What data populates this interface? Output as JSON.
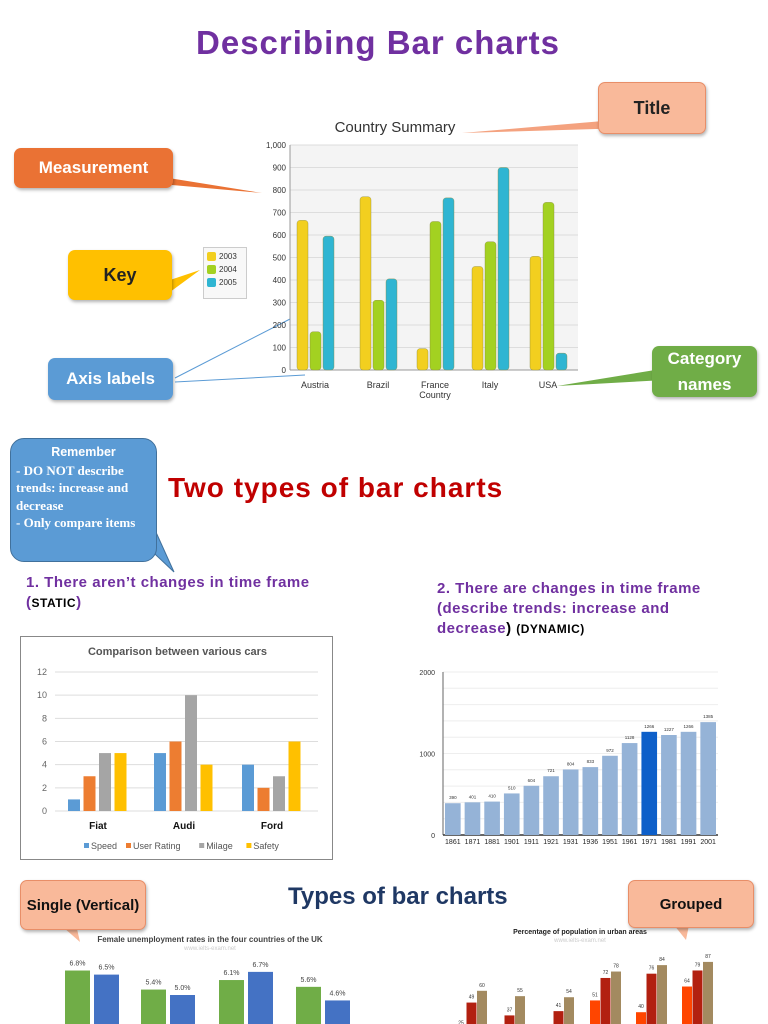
{
  "page": {
    "title": "Describing Bar charts",
    "subtitle": "Two types of bar charts",
    "types_heading": "Types of bar charts",
    "callouts": {
      "title": "Title",
      "measurement": "Measurement",
      "key": "Key",
      "axis_labels": "Axis labels",
      "category_names": "Category names",
      "single": "Single (Vertical)",
      "grouped": "Grouped"
    },
    "remember": {
      "heading": "Remember",
      "lines": [
        "- DO NOT describe trends: increase and decrease",
        "- Only compare items"
      ]
    },
    "type1": {
      "text": "1. There aren’t changes in time frame (",
      "tag": "STATIC",
      "close": ")"
    },
    "type2": {
      "text": "2. There are changes in time frame (describe trends: increase and decrease",
      "close": ")",
      "tag": "(DYNAMIC)"
    },
    "colors": {
      "title": "#7030a0",
      "subtitle": "#c00000",
      "types_heading": "#1f3864"
    }
  },
  "chart_data": [
    {
      "type": "bar",
      "title": "Country Summary",
      "xlabel": "Country",
      "ylabel": "",
      "ylim": [
        0,
        1000
      ],
      "yticks": [
        "0",
        "100",
        "200",
        "300",
        "400",
        "500",
        "600",
        "700",
        "800",
        "900",
        "1,000"
      ],
      "categories": [
        "Austria",
        "Brazil",
        "France",
        "Italy",
        "USA"
      ],
      "series": [
        {
          "name": "2003",
          "color": "#f2cf1f",
          "values": [
            665,
            770,
            95,
            460,
            505
          ]
        },
        {
          "name": "2004",
          "color": "#a3d121",
          "values": [
            170,
            310,
            660,
            570,
            745
          ]
        },
        {
          "name": "2005",
          "color": "#2fb5d2",
          "values": [
            595,
            405,
            765,
            900,
            75
          ]
        }
      ],
      "legend": "left",
      "grid": true
    },
    {
      "type": "bar",
      "title": "Comparison between various cars",
      "ylim": [
        0,
        12
      ],
      "yticks": [
        "0",
        "2",
        "4",
        "6",
        "8",
        "10",
        "12"
      ],
      "categories": [
        "Fiat",
        "Audi",
        "Ford"
      ],
      "series": [
        {
          "name": "Speed",
          "color": "#5b9bd5",
          "values": [
            1,
            5,
            4
          ]
        },
        {
          "name": "User Rating",
          "color": "#ed7d31",
          "values": [
            3,
            6,
            2
          ]
        },
        {
          "name": "Milage",
          "color": "#a5a5a5",
          "values": [
            5,
            10,
            3
          ]
        },
        {
          "name": "Safety",
          "color": "#ffc000",
          "values": [
            5,
            4,
            6
          ]
        }
      ],
      "legend": "bottom",
      "grid": true
    },
    {
      "type": "bar",
      "ylim": [
        0,
        2000
      ],
      "yticks": [
        "0",
        "1000",
        "2000"
      ],
      "categories": [
        "1861",
        "1871",
        "1881",
        "1901",
        "1911",
        "1921",
        "1931",
        "1936",
        "1951",
        "1961",
        "1971",
        "1981",
        "1991",
        "2001"
      ],
      "values": [
        390,
        401,
        410,
        510,
        604,
        721,
        804,
        833,
        972,
        1128,
        1266,
        1227,
        1266,
        1385
      ],
      "data_labels": [
        "390",
        "401",
        "410",
        "510",
        "604",
        "721",
        "804",
        "833",
        "972",
        "1128",
        "1266",
        "1227",
        "1266",
        "1385"
      ],
      "highlight": "1971",
      "color": "#95b3d7",
      "highlight_color": "#0d5fc9",
      "grid": true
    },
    {
      "type": "bar",
      "title": "Female unemployment rates in the four countries of the UK",
      "subtitle": "www.ielts-exam.net",
      "series": [
        {
          "color": "#70ad47",
          "values": [
            6.8,
            5.4,
            6.1,
            5.6
          ],
          "labels": [
            "6.8%",
            "5.4%",
            "6.1%",
            "5.6%"
          ]
        },
        {
          "color": "#4472c4",
          "values": [
            6.5,
            5.0,
            6.7,
            4.6
          ],
          "labels": [
            "6.5%",
            "5.0%",
            "6.7%",
            "4.6%"
          ]
        }
      ]
    },
    {
      "type": "bar",
      "title": "Percentage of population in urban areas",
      "subtitle": "www.ielts-exam.net",
      "series": [
        {
          "color": "#ff4500",
          "values": [
            25,
            null,
            null,
            51,
            40,
            64
          ],
          "labels": [
            "25",
            "",
            "",
            "51",
            "40",
            "64"
          ]
        },
        {
          "color": "#b22010",
          "values": [
            49,
            37,
            41,
            72,
            76,
            79
          ],
          "labels": [
            "49",
            "37",
            "41",
            "72",
            "76",
            "79"
          ]
        },
        {
          "color": "#a38a60",
          "values": [
            60,
            55,
            54,
            78,
            84,
            87
          ],
          "labels": [
            "60",
            "55",
            "54",
            "78",
            "84",
            "87"
          ]
        }
      ]
    }
  ]
}
